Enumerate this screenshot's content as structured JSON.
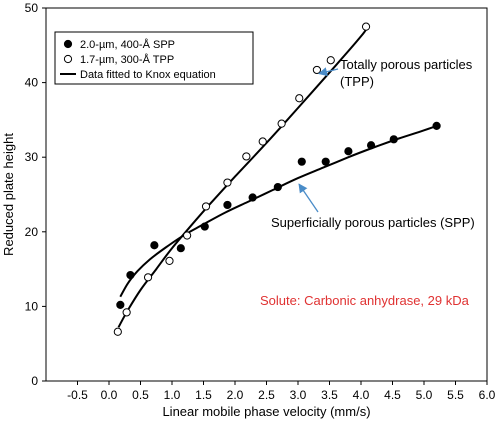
{
  "chart_data": {
    "type": "scatter",
    "xlabel": "Linear mobile phase velocity (mm/s)",
    "ylabel": "Reduced plate height",
    "xlim": [
      -1.0,
      6.0
    ],
    "ylim": [
      0,
      50
    ],
    "x_ticks": [
      -0.5,
      0.0,
      0.5,
      1.0,
      1.5,
      2.0,
      2.5,
      3.0,
      3.5,
      4.0,
      4.5,
      5.0,
      5.5,
      6.0
    ],
    "x_tick_labels": [
      "-0.5",
      "0.0",
      "0.5",
      "1.0",
      "1.5",
      "2.0",
      "2.5",
      "3.0",
      "3.5",
      "4.0",
      "4.5",
      "5.0",
      "5.5",
      "6.0"
    ],
    "y_ticks": [
      0,
      10,
      20,
      30,
      40,
      50
    ],
    "y_tick_labels": [
      "0",
      "10",
      "20",
      "30",
      "40",
      "50"
    ],
    "grid": false,
    "legend_position": "top-left",
    "legend": [
      {
        "label": "2.0-µm, 400-Å SPP",
        "marker": "filled-circle"
      },
      {
        "label": "1.7-µm, 300-Å TPP",
        "marker": "open-circle"
      },
      {
        "label": "Data fitted to Knox equation",
        "marker": "line"
      }
    ],
    "series": [
      {
        "name": "2.0-µm, 400-Å SPP",
        "marker": "filled",
        "x": [
          0.18,
          0.34,
          0.72,
          1.14,
          1.52,
          1.88,
          2.28,
          2.68,
          3.06,
          3.44,
          3.8,
          4.16,
          4.52,
          5.2
        ],
        "y": [
          10.2,
          14.2,
          18.2,
          17.8,
          20.7,
          23.6,
          24.6,
          26.0,
          29.4,
          29.4,
          30.8,
          31.6,
          32.4,
          34.2
        ]
      },
      {
        "name": "1.7-µm, 300-Å TPP",
        "marker": "open",
        "x": [
          0.14,
          0.28,
          0.62,
          0.96,
          1.24,
          1.54,
          1.88,
          2.18,
          2.44,
          2.74,
          3.02,
          3.3,
          3.52,
          4.08
        ],
        "y": [
          6.6,
          9.2,
          13.9,
          16.1,
          19.5,
          23.4,
          26.6,
          30.1,
          32.1,
          34.5,
          37.9,
          41.7,
          43.0,
          47.5
        ]
      }
    ],
    "fit_curves": [
      {
        "name": "Data fitted to Knox equation",
        "applies_to": "2.0-µm, 400-Å SPP",
        "x": [
          0.18,
          0.3,
          0.45,
          0.65,
          0.9,
          1.2,
          1.5,
          1.85,
          2.2,
          2.6,
          3.0,
          3.4,
          3.8,
          4.2,
          4.6,
          5.0,
          5.2
        ],
        "y": [
          11.3,
          13.1,
          14.7,
          16.3,
          17.9,
          19.6,
          21.0,
          22.6,
          24.0,
          25.6,
          27.2,
          28.6,
          30.0,
          31.3,
          32.5,
          33.6,
          34.2
        ]
      },
      {
        "name": "Data fitted to Knox equation",
        "applies_to": "1.7-µm, 300-Å TPP",
        "x": [
          0.15,
          0.3,
          0.5,
          0.75,
          1.0,
          1.3,
          1.6,
          2.0,
          2.4,
          2.8,
          3.2,
          3.6,
          4.0,
          4.1
        ],
        "y": [
          7.2,
          9.5,
          12.2,
          15.0,
          17.8,
          20.8,
          23.7,
          27.4,
          31.0,
          34.7,
          38.5,
          42.3,
          46.2,
          47.4
        ]
      }
    ],
    "annotations": [
      {
        "text_lines": [
          "Totally porous particles",
          "(TPP)"
        ],
        "arrow_to": [
          3.3,
          41.2
        ],
        "color": "#000000",
        "arrow_color": "#4a8cc8"
      },
      {
        "text_lines": [
          "Superficially porous particles (SPP)"
        ],
        "arrow_to": [
          3.0,
          26.8
        ],
        "color": "#000000",
        "arrow_color": "#4a8cc8"
      },
      {
        "text_lines": [
          "Solute: Carbonic anhydrase, 29 kDa"
        ],
        "color": "#e03232"
      }
    ]
  }
}
